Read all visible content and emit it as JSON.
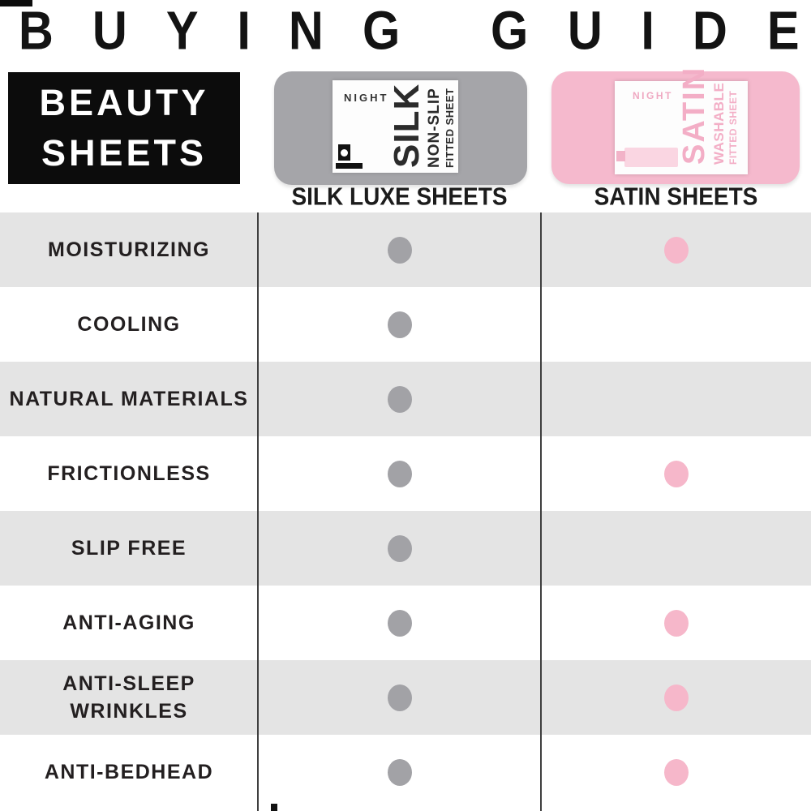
{
  "title": {
    "text": "BUYING GUIDE"
  },
  "category_box": {
    "line1": "BEAUTY",
    "line2": "SHEETS"
  },
  "products": [
    {
      "id": "silk",
      "header": "SILK LUXE SHEETS",
      "package": {
        "brand": "NIGHT",
        "name": "SILK",
        "line2": "NON-SLIP",
        "line3": "FITTED SHEET"
      },
      "colors": {
        "package_bg": "#a5a5a9",
        "dot": "#a2a2a6",
        "label_text": "#2b2b2b",
        "brand_text": "#333333"
      }
    },
    {
      "id": "satin",
      "header": "SATIN SHEETS",
      "package": {
        "brand": "NIGHT",
        "name": "SATIN",
        "line2": "WASHABLE",
        "line3": "FITTED SHEET"
      },
      "colors": {
        "package_bg": "#f5b9cd",
        "dot": "#f6b7ca",
        "label_text": "#f3aec6",
        "brand_text": "#efa9c2"
      }
    }
  ],
  "table": {
    "row_colors": {
      "odd": "#e4e4e4",
      "even": "#ffffff"
    },
    "rows": [
      {
        "feature": "MOISTURIZING",
        "silk": true,
        "satin": true
      },
      {
        "feature": "COOLING",
        "silk": true,
        "satin": false
      },
      {
        "feature": "NATURAL MATERIALS",
        "silk": true,
        "satin": false
      },
      {
        "feature": "FRICTIONLESS",
        "silk": true,
        "satin": true
      },
      {
        "feature": "SLIP FREE",
        "silk": true,
        "satin": false
      },
      {
        "feature": "ANTI-AGING",
        "silk": true,
        "satin": true
      },
      {
        "feature": "ANTI-SLEEP\nWRINKLES",
        "silk": true,
        "satin": true
      },
      {
        "feature": "ANTI-BEDHEAD",
        "silk": true,
        "satin": true
      }
    ]
  },
  "chart_data": {
    "type": "table",
    "title": "BUYING GUIDE",
    "subtitle": "BEAUTY SHEETS",
    "categories": [
      "MOISTURIZING",
      "COOLING",
      "NATURAL MATERIALS",
      "FRICTIONLESS",
      "SLIP FREE",
      "ANTI-AGING",
      "ANTI-SLEEP WRINKLES",
      "ANTI-BEDHEAD"
    ],
    "series": [
      {
        "name": "SILK LUXE SHEETS",
        "values": [
          1,
          1,
          1,
          1,
          1,
          1,
          1,
          1
        ]
      },
      {
        "name": "SATIN SHEETS",
        "values": [
          1,
          0,
          0,
          1,
          0,
          1,
          1,
          1
        ]
      }
    ],
    "legend_position": "top",
    "notes": "dot present = product has feature; silk dots gray, satin dots pink"
  }
}
